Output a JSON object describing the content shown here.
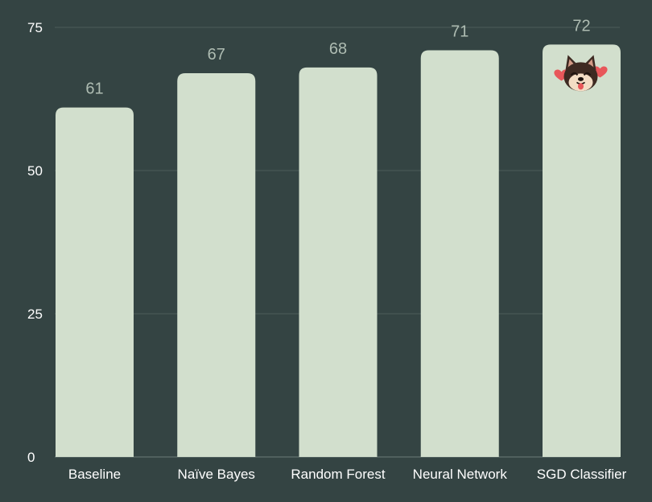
{
  "chart_data": {
    "type": "bar",
    "categories": [
      "Baseline",
      "Naïve Bayes",
      "Random Forest",
      "Neural Network",
      "SGD Classifier"
    ],
    "values": [
      61,
      67,
      68,
      71,
      72
    ],
    "value_labels": [
      "61",
      "67",
      "68",
      "71",
      "72"
    ],
    "yticks": [
      0,
      25,
      50,
      75
    ],
    "ytick_labels": [
      "0",
      "25",
      "50",
      "75"
    ],
    "ylim": [
      0,
      75
    ],
    "grid": true,
    "title": "",
    "xlabel": "",
    "ylabel": "",
    "colors": {
      "background": "#344443",
      "bar": "#d2dfcd",
      "value_label": "#aebcb2",
      "tick_label": "#ffffff",
      "grid": "#4d5c5a",
      "axis": "#6d7c78"
    },
    "annotation_icon": {
      "name": "shiba-dog-emoji-icon",
      "category": "SGD Classifier"
    }
  }
}
